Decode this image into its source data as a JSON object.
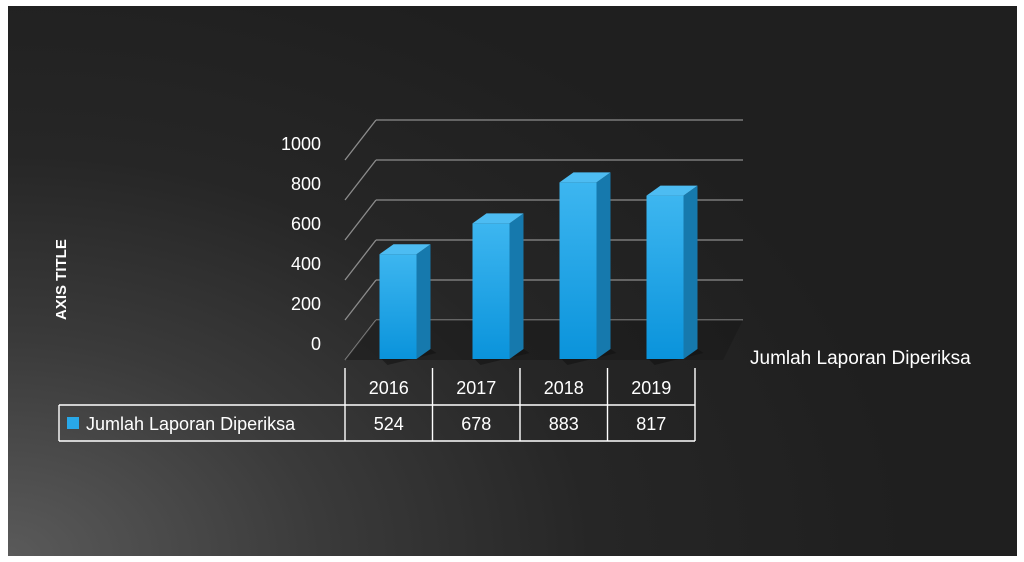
{
  "chart_data": {
    "type": "bar",
    "style": "3d-column",
    "categories": [
      "2016",
      "2017",
      "2018",
      "2019"
    ],
    "series": [
      {
        "name": "Jumlah Laporan Diperiksa",
        "values": [
          524,
          678,
          883,
          817
        ],
        "color": "#29a8e8"
      }
    ],
    "ylabel": "AXIS TITLE",
    "ylim": [
      0,
      1000
    ],
    "yticks": [
      "0",
      "200",
      "400",
      "600",
      "800",
      "1000"
    ],
    "grid": true,
    "data_table": true,
    "depth_axis_label": "Jumlah Laporan Diperiksa"
  },
  "colors": {
    "gridline": "#8c8c8c",
    "table_border": "#ffffff",
    "bar_front": "#1fa3e6",
    "bar_side": "#1679ad",
    "bar_top": "#4dbcf2"
  }
}
